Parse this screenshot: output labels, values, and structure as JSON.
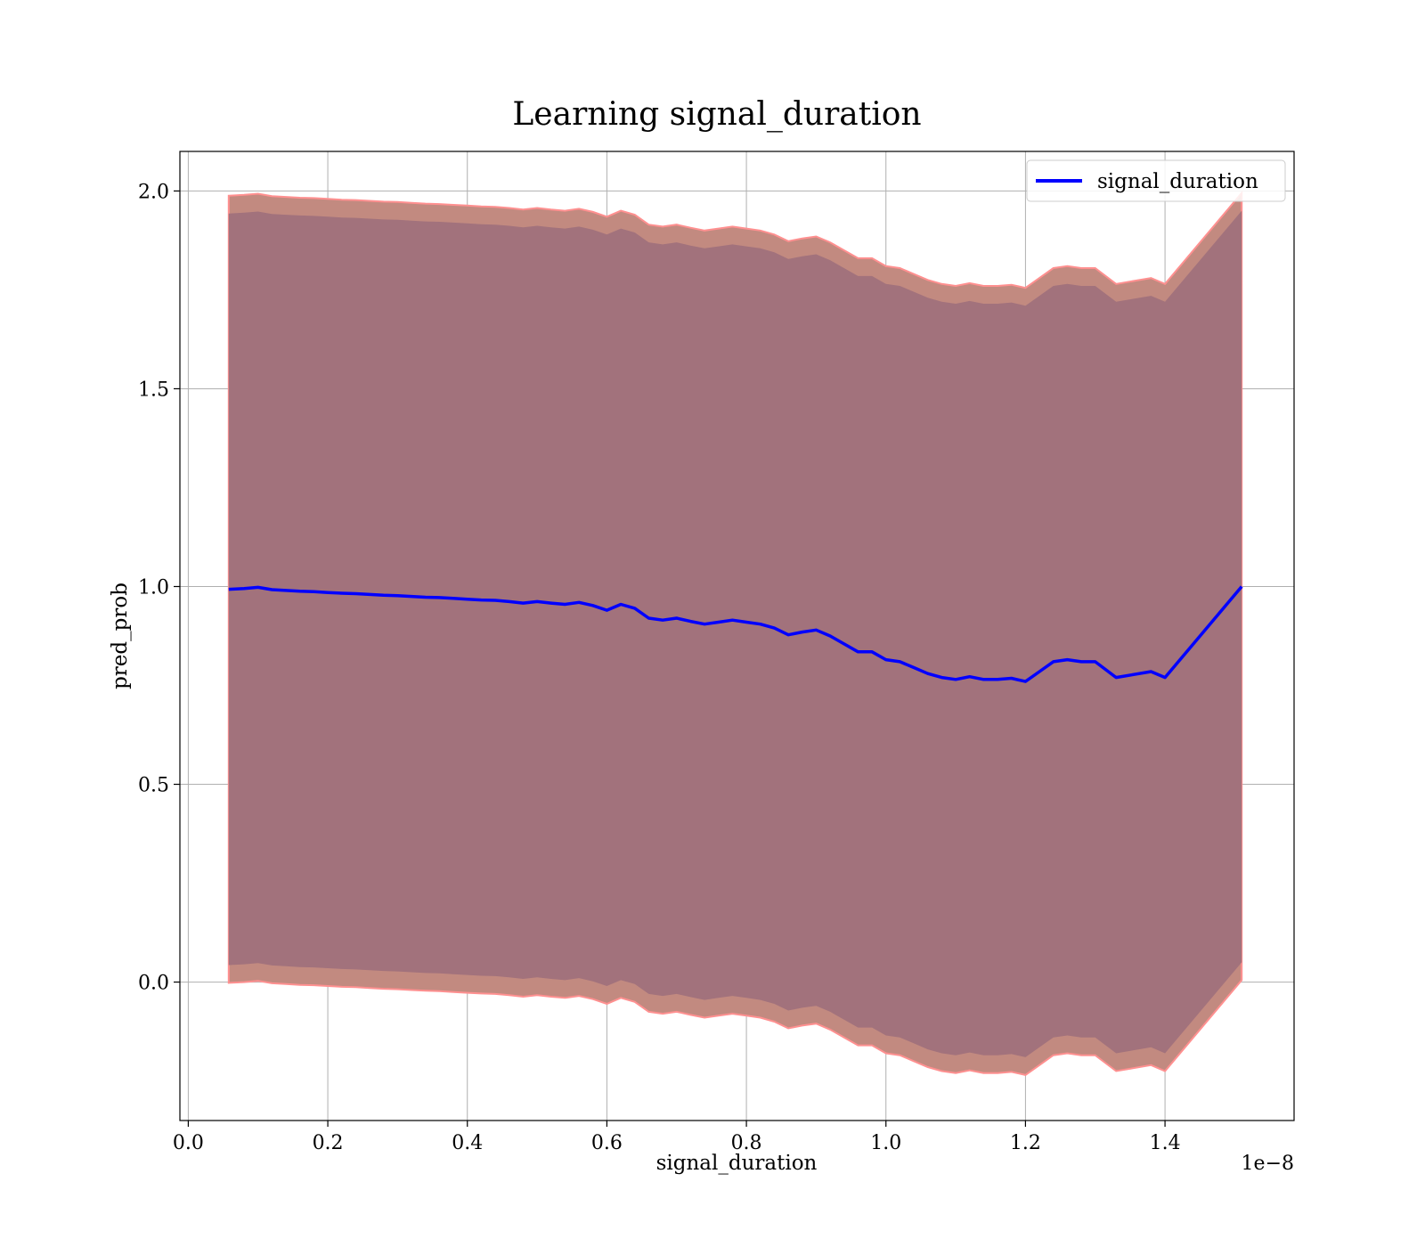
{
  "chart_data": {
    "type": "line",
    "title": "Learning signal_duration",
    "xlabel": "signal_duration",
    "ylabel": "pred_prob",
    "x_offset_label": "1e−8",
    "xlim": [
      -0.012,
      1.585
    ],
    "ylim": [
      -0.35,
      2.1
    ],
    "x_ticks": [
      0.0,
      0.2,
      0.4,
      0.6,
      0.8,
      1.0,
      1.2,
      1.4
    ],
    "x_tick_labels": [
      "0.0",
      "0.2",
      "0.4",
      "0.6",
      "0.8",
      "1.0",
      "1.2",
      "1.4"
    ],
    "y_ticks": [
      0.0,
      0.5,
      1.0,
      1.5,
      2.0
    ],
    "y_tick_labels": [
      "0.0",
      "0.5",
      "1.0",
      "1.5",
      "2.0"
    ],
    "grid": true,
    "legend_position": "top-right",
    "x": [
      0.058,
      0.08,
      0.1,
      0.12,
      0.14,
      0.16,
      0.18,
      0.2,
      0.22,
      0.24,
      0.26,
      0.28,
      0.3,
      0.32,
      0.34,
      0.36,
      0.38,
      0.4,
      0.42,
      0.44,
      0.46,
      0.48,
      0.5,
      0.52,
      0.54,
      0.56,
      0.58,
      0.6,
      0.62,
      0.64,
      0.66,
      0.68,
      0.7,
      0.72,
      0.74,
      0.76,
      0.78,
      0.8,
      0.82,
      0.84,
      0.86,
      0.88,
      0.9,
      0.92,
      0.94,
      0.96,
      0.98,
      1.0,
      1.02,
      1.04,
      1.06,
      1.08,
      1.1,
      1.12,
      1.14,
      1.16,
      1.18,
      1.2,
      1.22,
      1.24,
      1.26,
      1.28,
      1.3,
      1.33,
      1.38,
      1.4,
      1.51
    ],
    "series": [
      {
        "name": "signal_duration",
        "color": "#0000ff",
        "values": [
          0.993,
          0.995,
          0.998,
          0.992,
          0.99,
          0.988,
          0.987,
          0.985,
          0.983,
          0.982,
          0.98,
          0.978,
          0.977,
          0.975,
          0.973,
          0.972,
          0.97,
          0.968,
          0.966,
          0.965,
          0.962,
          0.958,
          0.962,
          0.958,
          0.955,
          0.96,
          0.952,
          0.94,
          0.955,
          0.945,
          0.92,
          0.915,
          0.92,
          0.912,
          0.905,
          0.91,
          0.915,
          0.91,
          0.905,
          0.895,
          0.878,
          0.885,
          0.89,
          0.875,
          0.855,
          0.835,
          0.835,
          0.815,
          0.81,
          0.795,
          0.78,
          0.77,
          0.765,
          0.772,
          0.765,
          0.765,
          0.768,
          0.76,
          0.785,
          0.81,
          0.815,
          0.81,
          0.81,
          0.77,
          0.785,
          0.77,
          1.0
        ]
      }
    ],
    "band_outer": {
      "color": "#c28a80",
      "edge_color": "#ff9090",
      "upper": [
        1.988,
        1.99,
        1.993,
        1.987,
        1.985,
        1.983,
        1.982,
        1.98,
        1.978,
        1.977,
        1.975,
        1.973,
        1.972,
        1.97,
        1.968,
        1.967,
        1.965,
        1.963,
        1.961,
        1.96,
        1.957,
        1.953,
        1.957,
        1.953,
        1.95,
        1.955,
        1.947,
        1.935,
        1.95,
        1.94,
        1.915,
        1.91,
        1.915,
        1.907,
        1.9,
        1.905,
        1.91,
        1.905,
        1.9,
        1.89,
        1.873,
        1.88,
        1.885,
        1.87,
        1.85,
        1.83,
        1.83,
        1.81,
        1.805,
        1.79,
        1.775,
        1.765,
        1.76,
        1.767,
        1.76,
        1.76,
        1.763,
        1.755,
        1.78,
        1.805,
        1.81,
        1.805,
        1.805,
        1.765,
        1.78,
        1.765,
        1.995
      ],
      "lower": [
        -0.002,
        0.0,
        0.003,
        -0.003,
        -0.005,
        -0.007,
        -0.008,
        -0.01,
        -0.012,
        -0.013,
        -0.015,
        -0.017,
        -0.018,
        -0.02,
        -0.022,
        -0.023,
        -0.025,
        -0.027,
        -0.029,
        -0.03,
        -0.033,
        -0.037,
        -0.033,
        -0.037,
        -0.04,
        -0.035,
        -0.043,
        -0.055,
        -0.04,
        -0.05,
        -0.075,
        -0.08,
        -0.075,
        -0.083,
        -0.09,
        -0.085,
        -0.08,
        -0.085,
        -0.09,
        -0.1,
        -0.117,
        -0.11,
        -0.105,
        -0.12,
        -0.14,
        -0.16,
        -0.16,
        -0.18,
        -0.185,
        -0.2,
        -0.215,
        -0.225,
        -0.23,
        -0.223,
        -0.23,
        -0.23,
        -0.227,
        -0.235,
        -0.21,
        -0.185,
        -0.18,
        -0.185,
        -0.185,
        -0.225,
        -0.21,
        -0.225,
        0.005
      ]
    },
    "band_inner": {
      "color": "#a2727c",
      "upper": [
        1.943,
        1.945,
        1.948,
        1.942,
        1.94,
        1.938,
        1.937,
        1.935,
        1.933,
        1.932,
        1.93,
        1.928,
        1.927,
        1.925,
        1.923,
        1.922,
        1.92,
        1.918,
        1.916,
        1.915,
        1.912,
        1.908,
        1.912,
        1.908,
        1.905,
        1.91,
        1.902,
        1.89,
        1.905,
        1.895,
        1.87,
        1.865,
        1.87,
        1.862,
        1.855,
        1.86,
        1.865,
        1.86,
        1.855,
        1.845,
        1.828,
        1.835,
        1.84,
        1.825,
        1.805,
        1.785,
        1.785,
        1.765,
        1.76,
        1.745,
        1.73,
        1.72,
        1.715,
        1.722,
        1.715,
        1.715,
        1.718,
        1.71,
        1.735,
        1.76,
        1.765,
        1.76,
        1.76,
        1.72,
        1.735,
        1.72,
        1.95
      ],
      "lower": [
        0.043,
        0.045,
        0.048,
        0.042,
        0.04,
        0.038,
        0.037,
        0.035,
        0.033,
        0.032,
        0.03,
        0.028,
        0.027,
        0.025,
        0.023,
        0.022,
        0.02,
        0.018,
        0.016,
        0.015,
        0.012,
        0.008,
        0.012,
        0.008,
        0.005,
        0.01,
        0.002,
        -0.01,
        0.005,
        -0.005,
        -0.03,
        -0.035,
        -0.03,
        -0.038,
        -0.045,
        -0.04,
        -0.035,
        -0.04,
        -0.045,
        -0.055,
        -0.072,
        -0.065,
        -0.06,
        -0.075,
        -0.095,
        -0.115,
        -0.115,
        -0.135,
        -0.14,
        -0.155,
        -0.17,
        -0.18,
        -0.185,
        -0.178,
        -0.185,
        -0.185,
        -0.182,
        -0.19,
        -0.165,
        -0.14,
        -0.135,
        -0.14,
        -0.14,
        -0.18,
        -0.165,
        -0.18,
        0.05
      ]
    }
  }
}
